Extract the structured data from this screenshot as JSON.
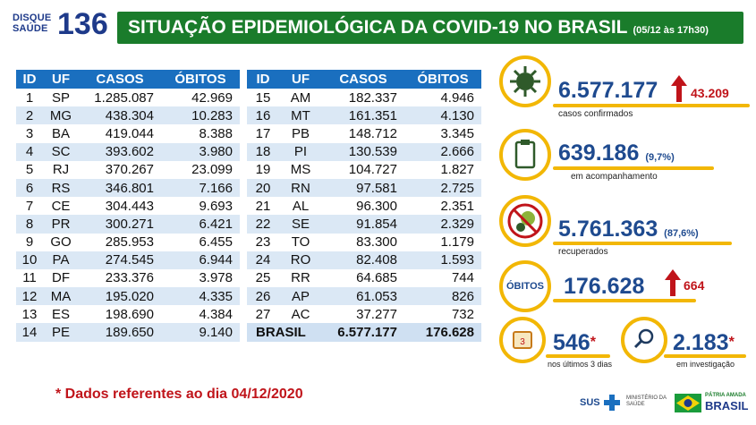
{
  "header": {
    "logo_top": "DISQUE",
    "logo_bottom": "SAÚDE",
    "logo_number": "136",
    "title": "SITUAÇÃO EPIDEMIOLÓGICA DA COVID-19 NO BRASIL",
    "date": "(05/12 às 17h30)"
  },
  "table": {
    "headers": [
      "ID",
      "UF",
      "CASOS",
      "ÓBITOS"
    ],
    "rows_left": [
      [
        "1",
        "SP",
        "1.285.087",
        "42.969"
      ],
      [
        "2",
        "MG",
        "438.304",
        "10.283"
      ],
      [
        "3",
        "BA",
        "419.044",
        "8.388"
      ],
      [
        "4",
        "SC",
        "393.602",
        "3.980"
      ],
      [
        "5",
        "RJ",
        "370.267",
        "23.099"
      ],
      [
        "6",
        "RS",
        "346.801",
        "7.166"
      ],
      [
        "7",
        "CE",
        "304.443",
        "9.693"
      ],
      [
        "8",
        "PR",
        "300.271",
        "6.421"
      ],
      [
        "9",
        "GO",
        "285.953",
        "6.455"
      ],
      [
        "10",
        "PA",
        "274.545",
        "6.944"
      ],
      [
        "11",
        "DF",
        "233.376",
        "3.978"
      ],
      [
        "12",
        "MA",
        "195.020",
        "4.335"
      ],
      [
        "13",
        "ES",
        "198.690",
        "4.384"
      ],
      [
        "14",
        "PE",
        "189.650",
        "9.140"
      ]
    ],
    "rows_right": [
      [
        "15",
        "AM",
        "182.337",
        "4.946"
      ],
      [
        "16",
        "MT",
        "161.351",
        "4.130"
      ],
      [
        "17",
        "PB",
        "148.712",
        "3.345"
      ],
      [
        "18",
        "PI",
        "130.539",
        "2.666"
      ],
      [
        "19",
        "MS",
        "104.727",
        "1.827"
      ],
      [
        "20",
        "RN",
        "97.581",
        "2.725"
      ],
      [
        "21",
        "AL",
        "96.300",
        "2.351"
      ],
      [
        "22",
        "SE",
        "91.854",
        "2.329"
      ],
      [
        "23",
        "TO",
        "83.300",
        "1.179"
      ],
      [
        "24",
        "RO",
        "82.408",
        "1.593"
      ],
      [
        "25",
        "RR",
        "64.685",
        "744"
      ],
      [
        "26",
        "AP",
        "61.053",
        "826"
      ],
      [
        "27",
        "AC",
        "37.277",
        "732"
      ]
    ],
    "total": {
      "label": "BRASIL",
      "casos": "6.577.177",
      "obitos": "176.628"
    }
  },
  "stats": {
    "confirmed": {
      "value": "6.577.177",
      "delta": "43.209",
      "label": "casos confirmados",
      "icon": "virus-icon"
    },
    "monitoring": {
      "value": "639.186",
      "pct": "(9,7%)",
      "label": "em acompanhamento",
      "icon": "clipboard-icon"
    },
    "recovered": {
      "value": "5.761.363",
      "pct": "(87,6%)",
      "label": "recuperados",
      "icon": "no-virus-icon"
    },
    "deaths": {
      "badge": "ÓBITOS",
      "value": "176.628",
      "delta": "664"
    },
    "last3": {
      "value": "546",
      "star": "*",
      "label": "nos últimos 3 dias",
      "icon": "calendar-icon"
    },
    "investigation": {
      "value": "2.183",
      "star": "*",
      "label": "em investigação",
      "icon": "magnifier-icon"
    }
  },
  "footnote": "* Dados referentes ao dia 04/12/2020",
  "footer": {
    "sus": "SUS",
    "ministry": "MINISTÉRIO DA SAÚDE",
    "brasil_top": "PÁTRIA AMADA",
    "brasil": "BRASIL"
  },
  "colors": {
    "green": "#1a7c2b",
    "blue_header": "#1a6fbf",
    "navy": "#1e4a8f",
    "yellow": "#f2b705",
    "red": "#c0141a"
  }
}
